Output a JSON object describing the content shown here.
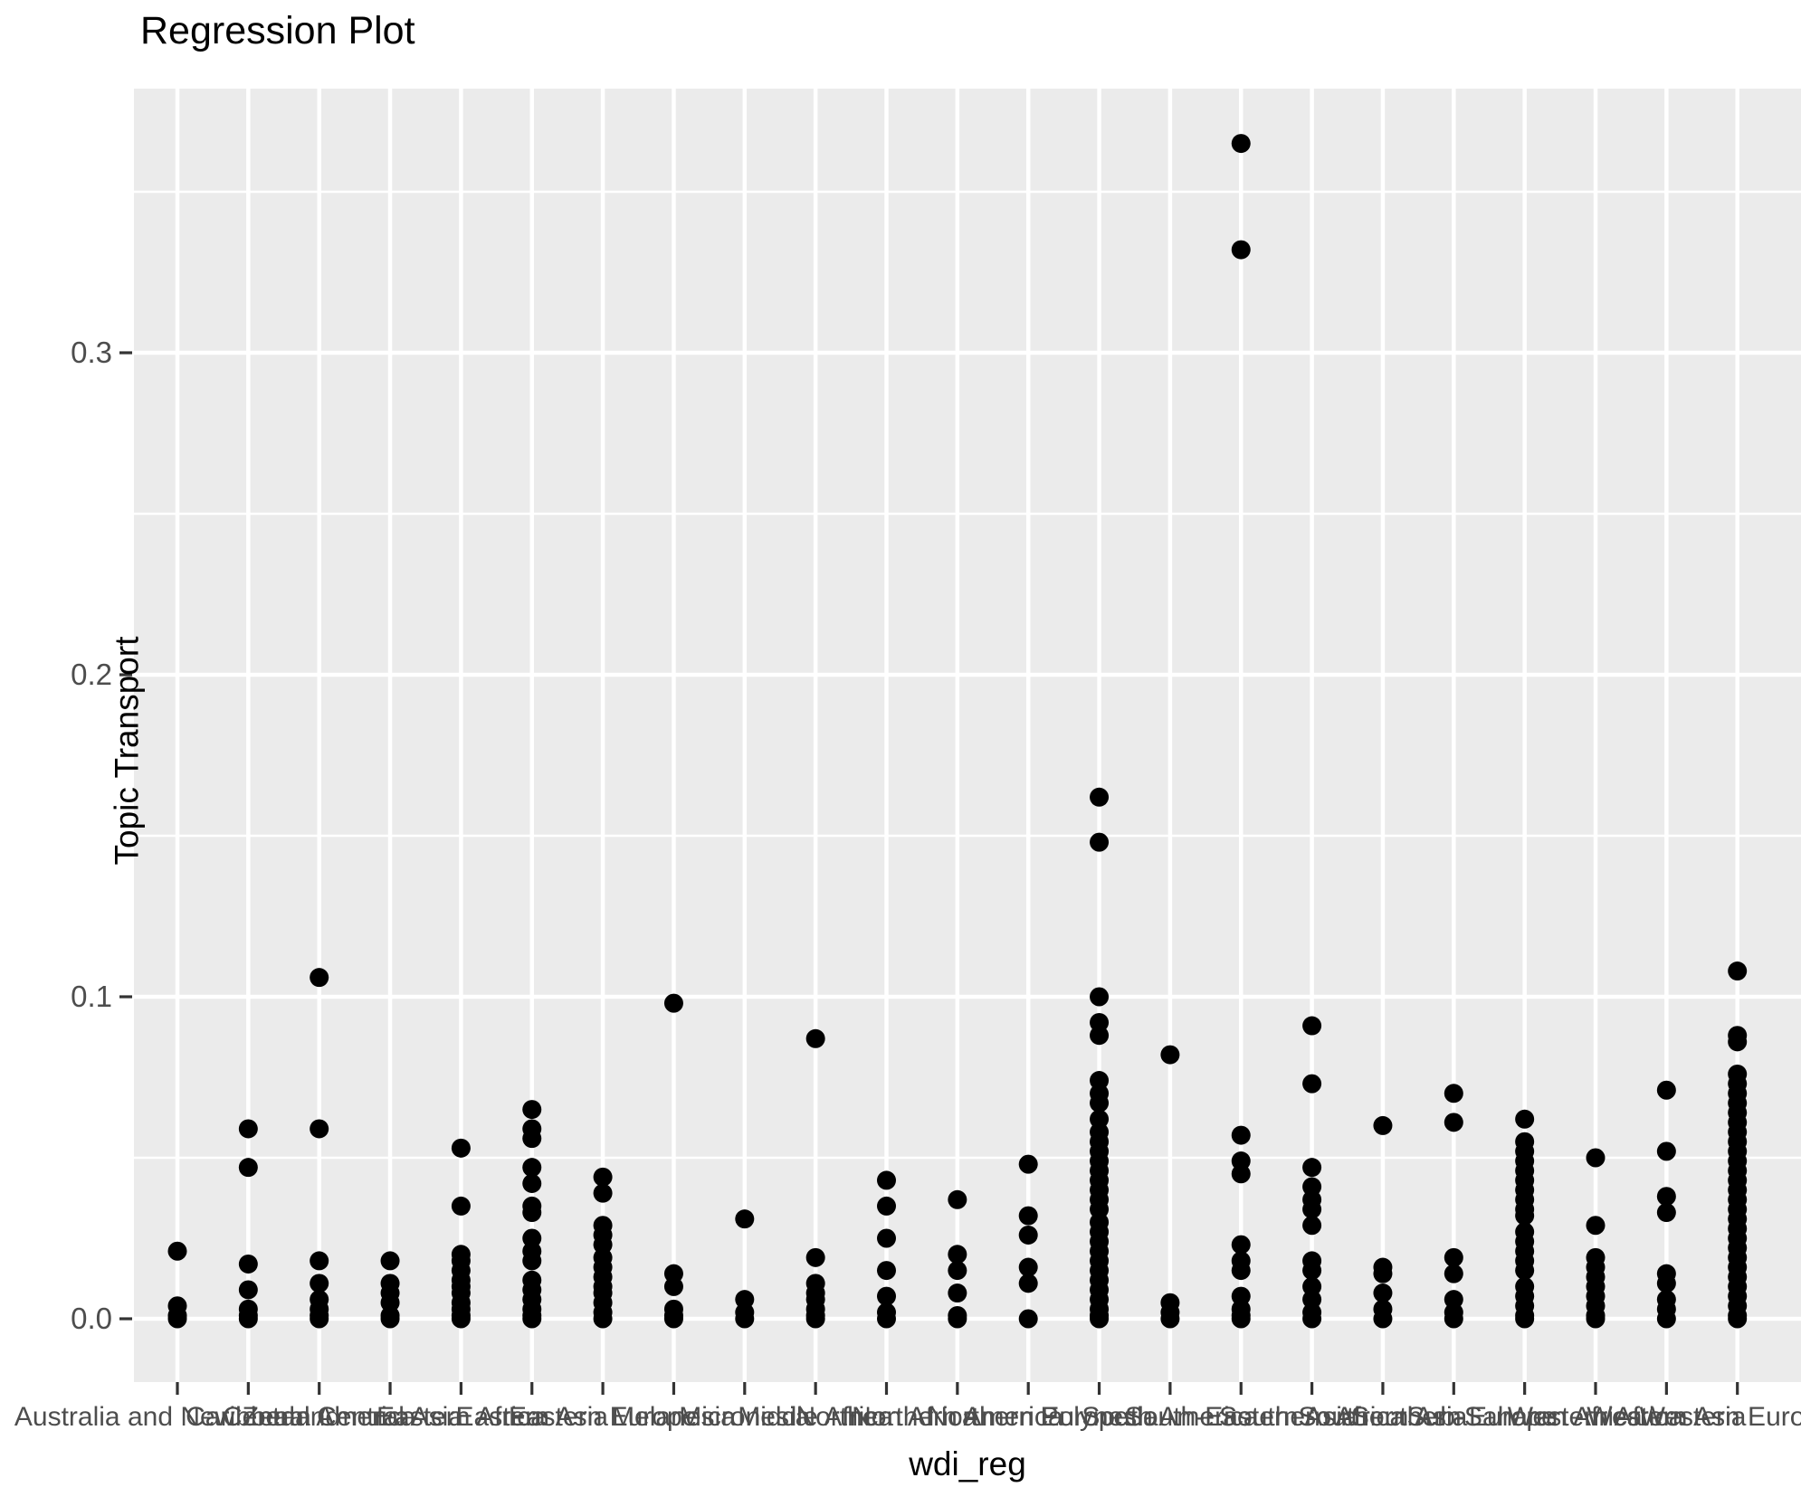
{
  "title": "Regression Plot",
  "chart_data": {
    "type": "scatter",
    "title": "Regression Plot",
    "xlabel": "wdi_reg",
    "ylabel": "Topic Transport",
    "ylim": [
      -0.02,
      0.382
    ],
    "yticks": [
      0.0,
      0.1,
      0.2,
      0.3
    ],
    "ytick_labels": [
      "0.0",
      "0.1",
      "0.2",
      "0.3"
    ],
    "minor_yticks": [
      0.05,
      0.15,
      0.25,
      0.35
    ],
    "grid": "on",
    "legend": "none",
    "point_color": "#000000",
    "panel_background": "#EBEBEB",
    "gridline_color": "#FFFFFF",
    "tick_mark_color": "#333333",
    "axis_text_color": "#4D4D4D",
    "categories": [
      {
        "label": "Australia and New Zealand",
        "values": [
          0.021,
          0.004,
          0.001,
          0.0
        ]
      },
      {
        "label": "Caribbean",
        "values": [
          0.059,
          0.047,
          0.017,
          0.009,
          0.003,
          0.001,
          0.0
        ]
      },
      {
        "label": "Central America",
        "values": [
          0.106,
          0.059,
          0.018,
          0.011,
          0.006,
          0.003,
          0.001,
          0.0
        ]
      },
      {
        "label": "Central Asia",
        "values": [
          0.018,
          0.011,
          0.008,
          0.005,
          0.001,
          0.0
        ]
      },
      {
        "label": "Eastern Africa",
        "values": [
          0.053,
          0.035,
          0.02,
          0.018,
          0.015,
          0.012,
          0.01,
          0.008,
          0.005,
          0.003,
          0.001,
          0.0
        ]
      },
      {
        "label": "Eastern Asia",
        "values": [
          0.065,
          0.059,
          0.056,
          0.047,
          0.042,
          0.035,
          0.033,
          0.025,
          0.021,
          0.018,
          0.012,
          0.009,
          0.006,
          0.003,
          0.001,
          0.0
        ]
      },
      {
        "label": "Eastern Europe",
        "values": [
          0.044,
          0.039,
          0.029,
          0.026,
          0.023,
          0.019,
          0.016,
          0.013,
          0.01,
          0.008,
          0.005,
          0.002,
          0.0
        ]
      },
      {
        "label": "Melanesia",
        "values": [
          0.098,
          0.014,
          0.01,
          0.003,
          0.001,
          0.0
        ]
      },
      {
        "label": "Micronesia",
        "values": [
          0.031,
          0.006,
          0.002,
          0.0
        ]
      },
      {
        "label": "Middle Africa",
        "values": [
          0.087,
          0.019,
          0.011,
          0.008,
          0.006,
          0.003,
          0.001,
          0.0
        ]
      },
      {
        "label": "Northern Africa",
        "values": [
          0.043,
          0.035,
          0.025,
          0.015,
          0.007,
          0.002,
          0.0
        ]
      },
      {
        "label": "Northern America",
        "values": [
          0.037,
          0.02,
          0.015,
          0.008,
          0.001,
          0.0
        ]
      },
      {
        "label": "Northern Europe",
        "values": [
          0.048,
          0.032,
          0.026,
          0.016,
          0.011,
          0.0
        ]
      },
      {
        "label": "Polynesia",
        "values": [
          0.162,
          0.148,
          0.1,
          0.092,
          0.088,
          0.074,
          0.07,
          0.067,
          0.062,
          0.058,
          0.055,
          0.052,
          0.049,
          0.046,
          0.043,
          0.04,
          0.037,
          0.034,
          0.03,
          0.027,
          0.024,
          0.021,
          0.018,
          0.015,
          0.012,
          0.009,
          0.006,
          0.003,
          0.001,
          0.0
        ]
      },
      {
        "label": "South America",
        "values": [
          0.082,
          0.005,
          0.002,
          0.0
        ]
      },
      {
        "label": "South-Eastern Asia",
        "values": [
          0.365,
          0.332,
          0.057,
          0.049,
          0.045,
          0.023,
          0.018,
          0.015,
          0.007,
          0.003,
          0.001,
          0.0
        ]
      },
      {
        "label": "Southern Africa",
        "values": [
          0.091,
          0.073,
          0.047,
          0.041,
          0.037,
          0.034,
          0.029,
          0.018,
          0.015,
          0.01,
          0.006,
          0.002,
          0.0
        ]
      },
      {
        "label": "Southern Asia",
        "values": [
          0.06,
          0.016,
          0.014,
          0.008,
          0.003,
          0.0
        ]
      },
      {
        "label": "Southern Europe",
        "values": [
          0.07,
          0.061,
          0.019,
          0.014,
          0.006,
          0.002,
          0.0
        ]
      },
      {
        "label": "Sub-Saharan Africa",
        "values": [
          0.062,
          0.055,
          0.052,
          0.049,
          0.046,
          0.043,
          0.04,
          0.037,
          0.034,
          0.032,
          0.027,
          0.024,
          0.021,
          0.018,
          0.015,
          0.01,
          0.007,
          0.004,
          0.001,
          0.0
        ]
      },
      {
        "label": "Western Africa",
        "values": [
          0.05,
          0.029,
          0.019,
          0.016,
          0.013,
          0.01,
          0.007,
          0.004,
          0.001,
          0.0
        ]
      },
      {
        "label": "Western Asia",
        "values": [
          0.071,
          0.052,
          0.038,
          0.033,
          0.014,
          0.011,
          0.006,
          0.003,
          0.0
        ]
      },
      {
        "label": "Western Europe",
        "values": [
          0.108,
          0.088,
          0.086,
          0.076,
          0.073,
          0.07,
          0.067,
          0.064,
          0.061,
          0.058,
          0.055,
          0.052,
          0.049,
          0.046,
          0.043,
          0.04,
          0.037,
          0.034,
          0.031,
          0.028,
          0.025,
          0.022,
          0.019,
          0.016,
          0.013,
          0.01,
          0.007,
          0.004,
          0.001,
          0.0
        ]
      }
    ]
  }
}
